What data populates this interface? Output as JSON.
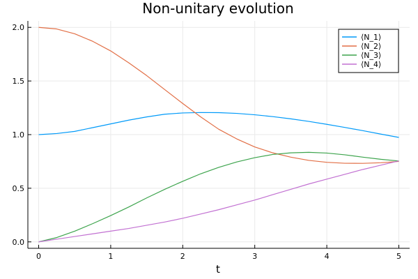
{
  "chart_data": {
    "type": "line",
    "title": "Non-unitary evolution",
    "xlabel": "t",
    "ylabel": "",
    "xlim": [
      -0.15,
      5.15
    ],
    "ylim": [
      -0.06,
      2.06
    ],
    "xticks": [
      0,
      1,
      2,
      3,
      4,
      5
    ],
    "yticks": [
      0.0,
      0.5,
      1.0,
      1.5,
      2.0
    ],
    "xtick_labels": [
      "0",
      "1",
      "2",
      "3",
      "4",
      "5"
    ],
    "ytick_labels": [
      "0.0",
      "0.5",
      "1.0",
      "1.5",
      "2.0"
    ],
    "grid": true,
    "legend_position": "top-right",
    "x": [
      0,
      0.25,
      0.5,
      0.75,
      1.0,
      1.25,
      1.5,
      1.75,
      2.0,
      2.25,
      2.5,
      2.75,
      3.0,
      3.25,
      3.5,
      3.75,
      4.0,
      4.25,
      4.5,
      4.75,
      5.0
    ],
    "series": [
      {
        "name": "⟨N_1⟩",
        "color": "#009af9",
        "values": [
          1.0,
          1.01,
          1.03,
          1.065,
          1.1,
          1.135,
          1.165,
          1.19,
          1.202,
          1.206,
          1.205,
          1.198,
          1.185,
          1.168,
          1.147,
          1.123,
          1.096,
          1.067,
          1.037,
          1.005,
          0.974
        ]
      },
      {
        "name": "⟨N_2⟩",
        "color": "#e26f46",
        "values": [
          2.0,
          1.985,
          1.94,
          1.87,
          1.78,
          1.67,
          1.55,
          1.42,
          1.29,
          1.165,
          1.05,
          0.96,
          0.885,
          0.83,
          0.79,
          0.76,
          0.742,
          0.733,
          0.732,
          0.738,
          0.75
        ]
      },
      {
        "name": "⟨N_3⟩",
        "color": "#3da44d",
        "values": [
          0.0,
          0.04,
          0.1,
          0.17,
          0.245,
          0.325,
          0.41,
          0.49,
          0.565,
          0.635,
          0.695,
          0.745,
          0.785,
          0.815,
          0.83,
          0.835,
          0.828,
          0.812,
          0.79,
          0.77,
          0.754
        ]
      },
      {
        "name": "⟨N_4⟩",
        "color": "#c271d2",
        "values": [
          0.0,
          0.025,
          0.05,
          0.075,
          0.1,
          0.125,
          0.155,
          0.185,
          0.22,
          0.26,
          0.3,
          0.345,
          0.39,
          0.44,
          0.49,
          0.54,
          0.585,
          0.63,
          0.675,
          0.715,
          0.755
        ]
      }
    ]
  }
}
